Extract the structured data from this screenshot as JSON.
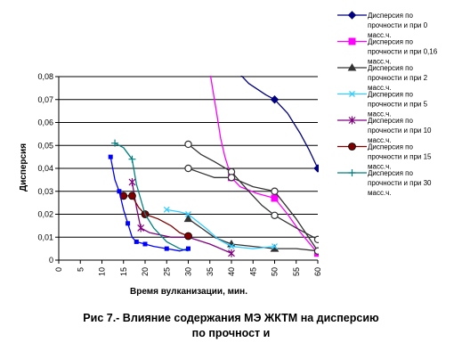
{
  "chart_data": {
    "type": "line",
    "ylabel": "Дисперсия",
    "xlabel": "Время вулканизации, мин.",
    "xlim": [
      0,
      60
    ],
    "ylim": [
      0,
      0.08
    ],
    "x_ticks": [
      "0",
      "5",
      "10",
      "15",
      "20",
      "25",
      "30",
      "35",
      "40",
      "45",
      "50",
      "55",
      "60"
    ],
    "y_ticks": [
      "0",
      "0,01",
      "0,02",
      "0,03",
      "0,04",
      "0,05",
      "0,06",
      "0,07",
      "0,08"
    ],
    "grid": "horizontal",
    "legend_position": "right",
    "series": [
      {
        "name": [
          "Дисперсия по",
          "прочности и при 0",
          "масс.ч."
        ],
        "color": "#000080",
        "marker": "diamond",
        "markers": [
          [
            50,
            0.07
          ],
          [
            60,
            0.04
          ]
        ],
        "curve": [
          [
            36,
            0.095
          ],
          [
            40,
            0.085
          ],
          [
            44,
            0.077
          ],
          [
            48,
            0.072
          ],
          [
            50,
            0.07
          ],
          [
            53,
            0.064
          ],
          [
            56,
            0.055
          ],
          [
            58,
            0.048
          ],
          [
            60,
            0.04
          ]
        ]
      },
      {
        "name": [
          "Дисперсия по",
          "прочности и при 0,16",
          "масс.ч."
        ],
        "color": "#ff00ff",
        "marker": "square",
        "markers": [
          [
            40,
            0.036
          ],
          [
            50,
            0.027
          ],
          [
            60,
            0.003
          ]
        ],
        "curve": [
          [
            35,
            0.082
          ],
          [
            36.5,
            0.065
          ],
          [
            37.5,
            0.053
          ],
          [
            38.5,
            0.045
          ],
          [
            40,
            0.036
          ],
          [
            42,
            0.032
          ],
          [
            46,
            0.029
          ],
          [
            50,
            0.027
          ],
          [
            53,
            0.02
          ],
          [
            56,
            0.012
          ],
          [
            60,
            0.003
          ]
        ]
      },
      {
        "name": [
          "Дисперсия по",
          "прочности и при 2",
          "масс.ч."
        ],
        "color": "#333333",
        "marker": "triangle",
        "markers": [
          [
            30,
            0.018
          ],
          [
            40,
            0.007
          ],
          [
            50,
            0.005
          ]
        ],
        "curve": [
          [
            30,
            0.018
          ],
          [
            33,
            0.014
          ],
          [
            36,
            0.01
          ],
          [
            40,
            0.007
          ],
          [
            45,
            0.006
          ],
          [
            50,
            0.005
          ],
          [
            55,
            0.005
          ],
          [
            60,
            0.004
          ]
        ]
      },
      {
        "name": [
          "Дисперсия по",
          "прочности и при 5",
          "масс.ч."
        ],
        "color": "#33ccff",
        "marker": "x",
        "markers": [
          [
            25,
            0.022
          ],
          [
            30,
            0.02
          ],
          [
            40,
            0.006
          ],
          [
            50,
            0.006
          ]
        ],
        "curve": [
          [
            25,
            0.022
          ],
          [
            28,
            0.021
          ],
          [
            30,
            0.02
          ],
          [
            34,
            0.014
          ],
          [
            37,
            0.009
          ],
          [
            40,
            0.006
          ],
          [
            45,
            0.005
          ],
          [
            50,
            0.006
          ]
        ]
      },
      {
        "name": [
          "Дисперсия по",
          "прочности и при 10",
          "масс.ч."
        ],
        "color": "#800080",
        "marker": "star",
        "markers": [
          [
            17,
            0.034
          ],
          [
            19,
            0.014
          ],
          [
            40,
            0.003
          ]
        ],
        "curve": [
          [
            17,
            0.034
          ],
          [
            18,
            0.023
          ],
          [
            19,
            0.014
          ],
          [
            21,
            0.012
          ],
          [
            26,
            0.01
          ],
          [
            30,
            0.01
          ],
          [
            35,
            0.007
          ],
          [
            40,
            0.003
          ]
        ]
      },
      {
        "name": [
          "Дисперсия по",
          "прочности и при 15",
          "масс.ч."
        ],
        "color": "#800000",
        "marker": "circle",
        "markers": [
          [
            15,
            0.028
          ],
          [
            17,
            0.028
          ],
          [
            20,
            0.02
          ],
          [
            30,
            0.0105
          ]
        ],
        "curve": [
          [
            15,
            0.028
          ],
          [
            17,
            0.028
          ],
          [
            18.5,
            0.023
          ],
          [
            20,
            0.02
          ],
          [
            23,
            0.018
          ],
          [
            26,
            0.015
          ],
          [
            28,
            0.012
          ],
          [
            30,
            0.0105
          ]
        ]
      },
      {
        "name": [
          "Дисперсия по",
          "прочности и при 30",
          "масс.ч."
        ],
        "color": "#008080",
        "marker": "plus",
        "markers": [
          [
            13,
            0.051
          ],
          [
            17,
            0.044
          ]
        ],
        "curve": [
          [
            13,
            0.051
          ],
          [
            15,
            0.049
          ],
          [
            17,
            0.044
          ],
          [
            18,
            0.033
          ],
          [
            20,
            0.02
          ],
          [
            22,
            0.014
          ],
          [
            25,
            0.008
          ],
          [
            28,
            0.005
          ],
          [
            30,
            0.004
          ]
        ]
      },
      {
        "name": "",
        "color": "#0000ff",
        "marker": "square-small",
        "markers": [
          [
            12,
            0.045
          ],
          [
            14,
            0.03
          ],
          [
            16,
            0.016
          ],
          [
            18,
            0.008
          ],
          [
            20,
            0.007
          ],
          [
            25,
            0.005
          ],
          [
            30,
            0.005
          ]
        ],
        "curve": [
          [
            12,
            0.045
          ],
          [
            13,
            0.035
          ],
          [
            14,
            0.03
          ],
          [
            15,
            0.022
          ],
          [
            16,
            0.016
          ],
          [
            17,
            0.01
          ],
          [
            18,
            0.008
          ],
          [
            20,
            0.007
          ],
          [
            22,
            0.006
          ],
          [
            25,
            0.005
          ],
          [
            28,
            0.004
          ],
          [
            30,
            0.005
          ]
        ]
      },
      {
        "name": "",
        "color": "#333333",
        "marker": "circle-open",
        "markers": [
          [
            30,
            0.0505
          ],
          [
            40,
            0.0385
          ],
          [
            50,
            0.0195
          ],
          [
            60,
            0.009
          ]
        ],
        "curve": [
          [
            30,
            0.0505
          ],
          [
            33,
            0.046
          ],
          [
            36,
            0.043
          ],
          [
            40,
            0.0385
          ],
          [
            44,
            0.03
          ],
          [
            47,
            0.024
          ],
          [
            50,
            0.0195
          ],
          [
            55,
            0.014
          ],
          [
            60,
            0.009
          ]
        ]
      },
      {
        "name": "",
        "color": "#333333",
        "marker": "circle-open",
        "markers": [
          [
            30,
            0.04
          ],
          [
            40,
            0.036
          ],
          [
            50,
            0.03
          ],
          [
            60,
            0.004
          ]
        ],
        "curve": [
          [
            30,
            0.04
          ],
          [
            33,
            0.038
          ],
          [
            36,
            0.036
          ],
          [
            40,
            0.036
          ],
          [
            45,
            0.032
          ],
          [
            50,
            0.03
          ],
          [
            55,
            0.018
          ],
          [
            60,
            0.004
          ]
        ]
      }
    ]
  },
  "caption": {
    "line1": "Рис 7.- Влияние содержания МЭ ЖКТМ на дисперсию",
    "line2": "по прочност и"
  }
}
